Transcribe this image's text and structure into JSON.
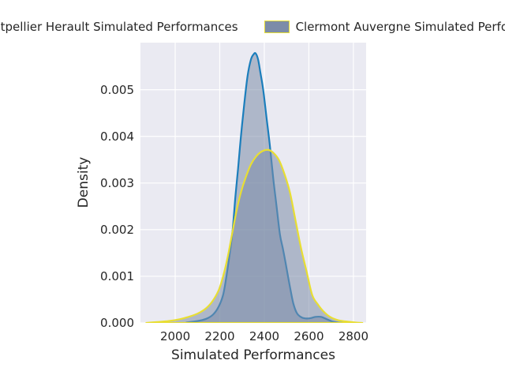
{
  "chart_data": {
    "type": "area",
    "subtype": "kde-density",
    "xlabel": "Simulated Performances",
    "ylabel": "Density",
    "xlim": [
      1844,
      2857
    ],
    "ylim": [
      0,
      0.00601
    ],
    "grid": true,
    "plot_background": "#eaeaf2",
    "gridline_color": "#ffffff",
    "text_color": "#262626",
    "xticks": [
      {
        "v": 2000,
        "label": "2000"
      },
      {
        "v": 2200,
        "label": "2200"
      },
      {
        "v": 2400,
        "label": "2400"
      },
      {
        "v": 2600,
        "label": "2600"
      },
      {
        "v": 2800,
        "label": "2800"
      }
    ],
    "yticks": [
      {
        "v": 0.0,
        "label": "0.000"
      },
      {
        "v": 0.001,
        "label": "0.001"
      },
      {
        "v": 0.002,
        "label": "0.002"
      },
      {
        "v": 0.003,
        "label": "0.003"
      },
      {
        "v": 0.004,
        "label": "0.004"
      },
      {
        "v": 0.005,
        "label": "0.005"
      }
    ],
    "legend": {
      "position": "top",
      "swatch_fill": "#7c8ca8",
      "entries": [
        {
          "label": "Montpellier Herault Simulated Performances",
          "line_color": "#1b7ebc"
        },
        {
          "label": "Clermont Auvergne Simulated Performances",
          "line_color": "#e8de33"
        }
      ]
    },
    "series": [
      {
        "name": "Montpellier Herault Simulated Performances",
        "line_color": "#1b7ebc",
        "fill_color": "rgba(124,140,168,0.55)",
        "peak": {
          "x": 2360,
          "density": 0.00578
        },
        "points": [
          [
            2050,
            1e-05
          ],
          [
            2100,
            4e-05
          ],
          [
            2140,
            9e-05
          ],
          [
            2170,
            0.00018
          ],
          [
            2195,
            0.00035
          ],
          [
            2215,
            0.0006
          ],
          [
            2230,
            0.001
          ],
          [
            2245,
            0.0015
          ],
          [
            2258,
            0.002
          ],
          [
            2270,
            0.0027
          ],
          [
            2282,
            0.0033
          ],
          [
            2295,
            0.004
          ],
          [
            2310,
            0.0047
          ],
          [
            2325,
            0.0053
          ],
          [
            2340,
            0.00565
          ],
          [
            2352,
            0.00576
          ],
          [
            2361,
            0.00578
          ],
          [
            2372,
            0.00565
          ],
          [
            2383,
            0.00535
          ],
          [
            2395,
            0.005
          ],
          [
            2410,
            0.0044
          ],
          [
            2425,
            0.0038
          ],
          [
            2440,
            0.0031
          ],
          [
            2455,
            0.0025
          ],
          [
            2470,
            0.0019
          ],
          [
            2483,
            0.0016
          ],
          [
            2495,
            0.0013
          ],
          [
            2507,
            0.00098
          ],
          [
            2518,
            0.0007
          ],
          [
            2530,
            0.00042
          ],
          [
            2545,
            0.00022
          ],
          [
            2560,
            0.00014
          ],
          [
            2580,
            0.0001
          ],
          [
            2605,
            0.0001
          ],
          [
            2630,
            0.00013
          ],
          [
            2655,
            0.00013
          ],
          [
            2680,
            8e-05
          ],
          [
            2705,
            3e-05
          ],
          [
            2730,
            1e-05
          ],
          [
            2755,
            0
          ]
        ]
      },
      {
        "name": "Clermont Auvergne Simulated Performances",
        "line_color": "#e8de33",
        "fill_color": "rgba(124,140,168,0.55)",
        "peak": {
          "x": 2418,
          "density": 0.00371
        },
        "points": [
          [
            1870,
            0
          ],
          [
            1920,
            2e-05
          ],
          [
            1970,
            4e-05
          ],
          [
            2020,
            8e-05
          ],
          [
            2060,
            0.00013
          ],
          [
            2100,
            0.0002
          ],
          [
            2135,
            0.0003
          ],
          [
            2165,
            0.00045
          ],
          [
            2195,
            0.0007
          ],
          [
            2215,
            0.001
          ],
          [
            2235,
            0.0014
          ],
          [
            2255,
            0.0019
          ],
          [
            2275,
            0.0024
          ],
          [
            2295,
            0.0028
          ],
          [
            2315,
            0.0031
          ],
          [
            2340,
            0.0034
          ],
          [
            2365,
            0.00358
          ],
          [
            2390,
            0.00368
          ],
          [
            2418,
            0.00371
          ],
          [
            2440,
            0.00365
          ],
          [
            2465,
            0.0035
          ],
          [
            2490,
            0.0032
          ],
          [
            2515,
            0.0028
          ],
          [
            2540,
            0.0022
          ],
          [
            2565,
            0.0016
          ],
          [
            2590,
            0.0011
          ],
          [
            2615,
            0.0006
          ],
          [
            2640,
            0.0004
          ],
          [
            2665,
            0.00025
          ],
          [
            2695,
            0.00013
          ],
          [
            2730,
            6e-05
          ],
          [
            2770,
            3e-05
          ],
          [
            2810,
            1e-05
          ],
          [
            2840,
            0
          ]
        ]
      }
    ]
  }
}
